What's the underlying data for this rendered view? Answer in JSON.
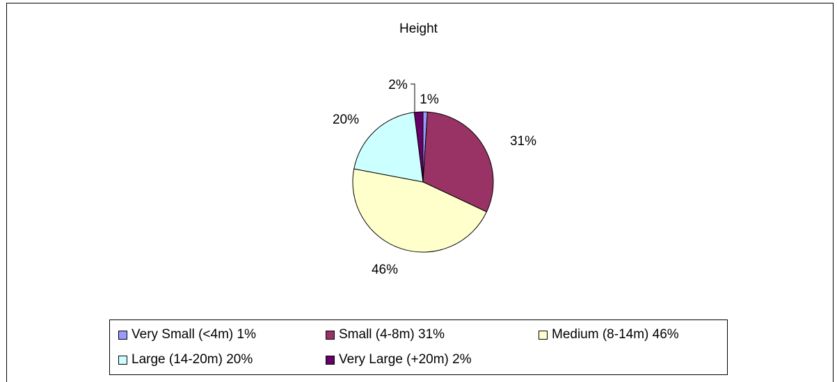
{
  "chart_data": {
    "type": "pie",
    "title": "Height",
    "slices": [
      {
        "label": "Very Small (<4m)",
        "value": 1,
        "pct_label": "1%",
        "color": "#9999ff"
      },
      {
        "label": "Small (4-8m)",
        "value": 31,
        "pct_label": "31%",
        "color": "#993366"
      },
      {
        "label": "Medium (8-14m)",
        "value": 46,
        "pct_label": "46%",
        "color": "#ffffcc"
      },
      {
        "label": "Large (14-20m)",
        "value": 20,
        "pct_label": "20%",
        "color": "#ccffff"
      },
      {
        "label": "Very Large (+20m)",
        "value": 2,
        "pct_label": "2%",
        "color": "#660066"
      }
    ],
    "legend": [
      "Very Small (<4m) 1%",
      "Small (4-8m) 31%",
      "Medium (8-14m) 46%",
      "Large (14-20m) 20%",
      "Very Large (+20m) 2%"
    ],
    "legend_position": "bottom"
  }
}
